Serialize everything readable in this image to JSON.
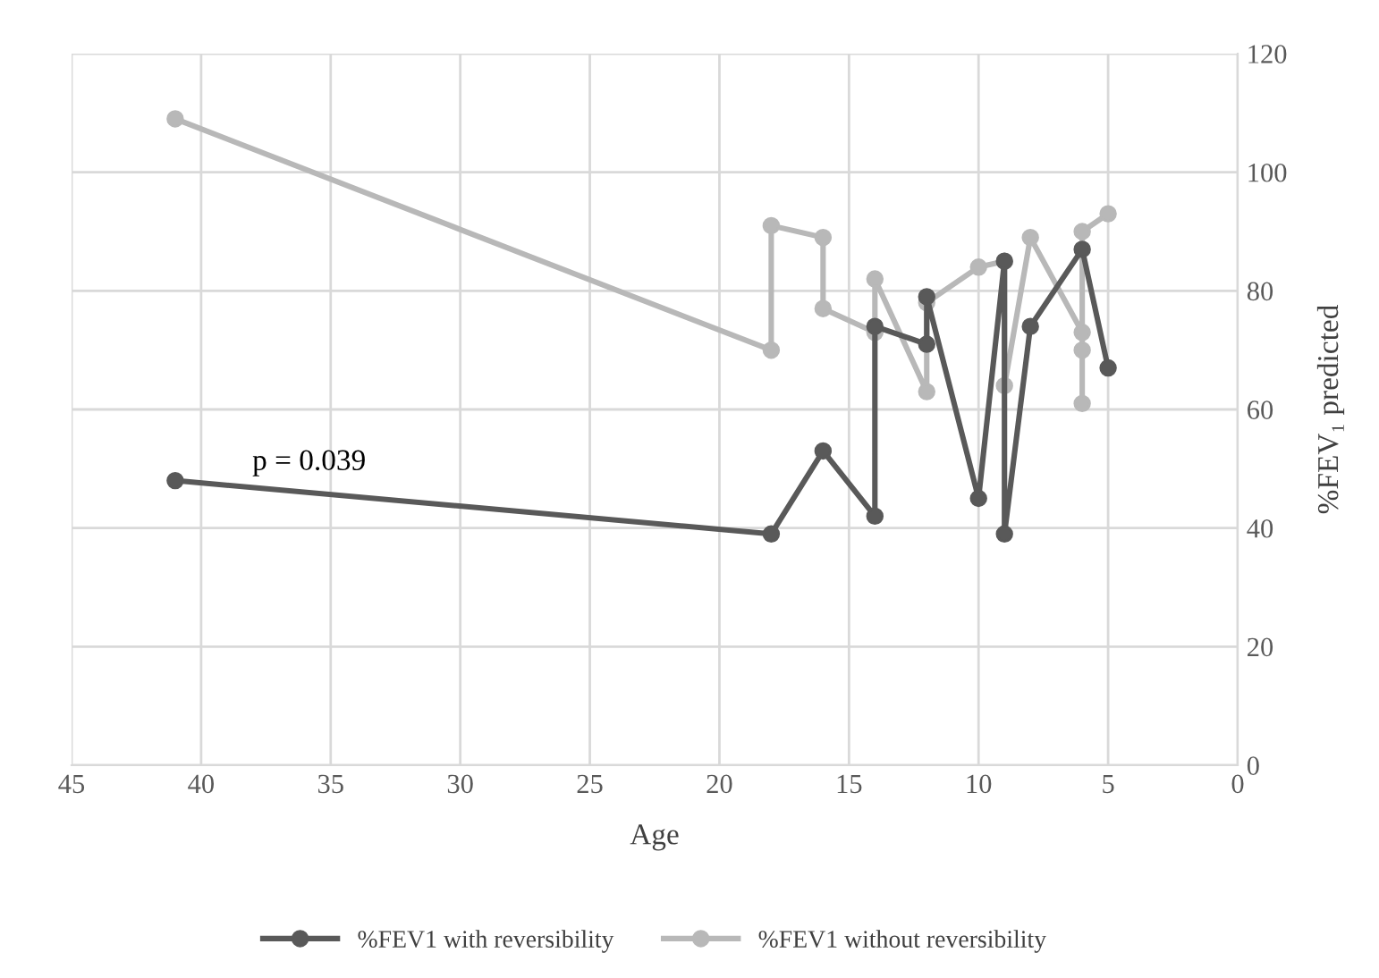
{
  "chart_data": {
    "type": "line",
    "xlabel": "Age",
    "ylabel": "%FEV₁ predicted",
    "xlim": [
      45,
      0
    ],
    "xticks": [
      45,
      40,
      35,
      30,
      25,
      20,
      15,
      10,
      5,
      0
    ],
    "ylim": [
      0,
      120
    ],
    "yticks": [
      0,
      20,
      40,
      60,
      80,
      100,
      120
    ],
    "grid": true,
    "legend": "bottom",
    "marker": "circle",
    "line_style": "solid",
    "annotations": [
      "p = 0.039"
    ],
    "series": [
      {
        "name": "%FEV1 with reversibility",
        "color": "#595959",
        "x": [
          41,
          18,
          16,
          14,
          14,
          12,
          12,
          10,
          9,
          9,
          8,
          6,
          5
        ],
        "values": [
          48,
          39,
          53,
          42,
          74,
          71,
          79,
          45,
          85,
          39,
          74,
          87,
          67
        ]
      },
      {
        "name": "%FEV1 without reversibility",
        "color": "#b8b8b8",
        "x": [
          41,
          18,
          18,
          16,
          16,
          14,
          14,
          12,
          12,
          10,
          9,
          9,
          8,
          6,
          6,
          6,
          6,
          5
        ],
        "values": [
          109,
          70,
          91,
          89,
          77,
          73,
          82,
          63,
          78,
          84,
          85,
          64,
          89,
          73,
          61,
          70,
          90,
          93
        ]
      }
    ]
  }
}
